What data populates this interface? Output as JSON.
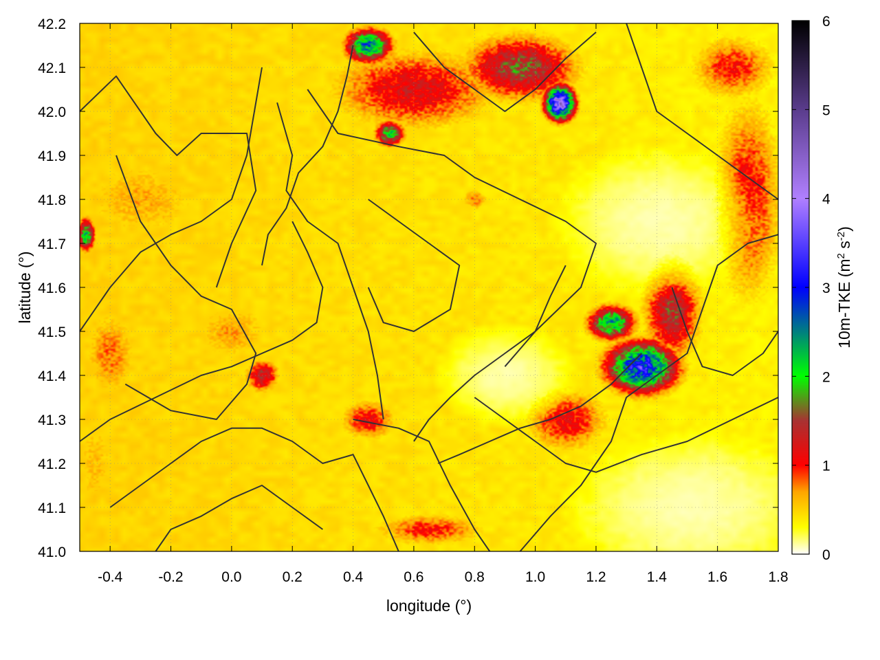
{
  "chart_data": {
    "type": "heatmap",
    "title": "",
    "xlabel": "longitude (°)",
    "ylabel": "latitude (°)",
    "colorbar_label_parts": [
      "10m-TKE (m",
      "2",
      " s",
      "-2",
      ")"
    ],
    "xlim": [
      -0.5,
      1.8
    ],
    "ylim": [
      41.0,
      42.2
    ],
    "x_ticks": [
      -0.4,
      -0.2,
      0.0,
      0.2,
      0.4,
      0.6,
      0.8,
      1.0,
      1.2,
      1.4,
      1.6,
      1.8
    ],
    "x_tick_labels": [
      "-0.4",
      "-0.2",
      "0.0",
      "0.2",
      "0.4",
      "0.6",
      "0.8",
      "1.0",
      "1.2",
      "1.4",
      "1.6",
      "1.8"
    ],
    "y_ticks": [
      41.0,
      41.1,
      41.2,
      41.3,
      41.4,
      41.5,
      41.6,
      41.7,
      41.8,
      41.9,
      42.0,
      42.1,
      42.2
    ],
    "y_tick_labels": [
      "41.0",
      "41.1",
      "41.2",
      "41.3",
      "41.4",
      "41.5",
      "41.6",
      "41.7",
      "41.8",
      "41.9",
      "42.0",
      "42.1",
      "42.2"
    ],
    "colorbar": {
      "range": [
        0,
        6
      ],
      "ticks": [
        0,
        1,
        2,
        3,
        4,
        5,
        6
      ],
      "tick_labels": [
        "0",
        "1",
        "2",
        "3",
        "4",
        "5",
        "6"
      ],
      "stops": [
        {
          "value": 0.0,
          "color": "#ffffff"
        },
        {
          "value": 0.3,
          "color": "#ffff00"
        },
        {
          "value": 0.7,
          "color": "#ffa500"
        },
        {
          "value": 1.0,
          "color": "#ff0000"
        },
        {
          "value": 1.5,
          "color": "#a83232"
        },
        {
          "value": 2.0,
          "color": "#00ff00"
        },
        {
          "value": 3.0,
          "color": "#0000ff"
        },
        {
          "value": 4.0,
          "color": "#b080ff"
        },
        {
          "value": 5.0,
          "color": "#5a3c8c"
        },
        {
          "value": 6.0,
          "color": "#000000"
        }
      ]
    },
    "grid": true,
    "contour_color": "#333333",
    "hotspots": [
      {
        "lon": -0.4,
        "lat": 41.45,
        "rx": 0.1,
        "ry": 0.12,
        "tke": 0.8
      },
      {
        "lon": -0.3,
        "lat": 41.8,
        "rx": 0.25,
        "ry": 0.12,
        "tke": 0.65
      },
      {
        "lon": 0.0,
        "lat": 41.5,
        "rx": 0.15,
        "ry": 0.08,
        "tke": 0.7
      },
      {
        "lon": -0.45,
        "lat": 41.2,
        "rx": 0.08,
        "ry": 0.15,
        "tke": 0.6
      },
      {
        "lon": 0.1,
        "lat": 41.4,
        "rx": 0.06,
        "ry": 0.04,
        "tke": 1.4
      },
      {
        "lon": 0.45,
        "lat": 41.3,
        "rx": 0.1,
        "ry": 0.05,
        "tke": 1.1
      },
      {
        "lon": 0.6,
        "lat": 42.05,
        "rx": 0.3,
        "ry": 0.1,
        "tke": 1.2
      },
      {
        "lon": 0.95,
        "lat": 42.1,
        "rx": 0.2,
        "ry": 0.08,
        "tke": 1.6
      },
      {
        "lon": 1.08,
        "lat": 42.02,
        "rx": 0.05,
        "ry": 0.04,
        "tke": 4.2
      },
      {
        "lon": 0.45,
        "lat": 42.15,
        "rx": 0.08,
        "ry": 0.04,
        "tke": 2.6
      },
      {
        "lon": 0.52,
        "lat": 41.95,
        "rx": 0.05,
        "ry": 0.03,
        "tke": 2.1
      },
      {
        "lon": 1.35,
        "lat": 41.42,
        "rx": 0.12,
        "ry": 0.06,
        "tke": 3.2
      },
      {
        "lon": 1.25,
        "lat": 41.52,
        "rx": 0.08,
        "ry": 0.04,
        "tke": 2.4
      },
      {
        "lon": 1.45,
        "lat": 41.55,
        "rx": 0.1,
        "ry": 0.12,
        "tke": 1.5
      },
      {
        "lon": 1.7,
        "lat": 41.8,
        "rx": 0.12,
        "ry": 0.25,
        "tke": 1.1
      },
      {
        "lon": 1.65,
        "lat": 42.1,
        "rx": 0.15,
        "ry": 0.08,
        "tke": 1.0
      },
      {
        "lon": -0.48,
        "lat": 41.72,
        "rx": 0.03,
        "ry": 0.04,
        "tke": 2.2
      },
      {
        "lon": 0.8,
        "lat": 41.8,
        "rx": 0.05,
        "ry": 0.03,
        "tke": 0.8
      },
      {
        "lon": 0.65,
        "lat": 41.05,
        "rx": 0.2,
        "ry": 0.04,
        "tke": 1.0
      },
      {
        "lon": 1.1,
        "lat": 41.3,
        "rx": 0.15,
        "ry": 0.08,
        "tke": 1.1
      }
    ],
    "calm_zones": [
      {
        "lon": 1.5,
        "lat": 41.1,
        "rx": 0.35,
        "ry": 0.15
      },
      {
        "lon": 1.4,
        "lat": 41.75,
        "rx": 0.3,
        "ry": 0.15
      },
      {
        "lon": 0.9,
        "lat": 41.4,
        "rx": 0.2,
        "ry": 0.1
      }
    ],
    "contours": [
      [
        [
          -0.5,
          42.0
        ],
        [
          -0.38,
          42.08
        ],
        [
          -0.25,
          41.95
        ],
        [
          -0.18,
          41.9
        ],
        [
          -0.1,
          41.95
        ],
        [
          0.05,
          41.95
        ],
        [
          0.08,
          41.82
        ],
        [
          0.0,
          41.7
        ],
        [
          -0.05,
          41.6
        ]
      ],
      [
        [
          -0.38,
          41.9
        ],
        [
          -0.3,
          41.75
        ],
        [
          -0.2,
          41.65
        ],
        [
          -0.1,
          41.58
        ],
        [
          0.0,
          41.55
        ],
        [
          0.08,
          41.45
        ],
        [
          0.05,
          41.38
        ],
        [
          -0.05,
          41.3
        ],
        [
          -0.2,
          41.32
        ],
        [
          -0.35,
          41.38
        ]
      ],
      [
        [
          0.15,
          42.02
        ],
        [
          0.2,
          41.9
        ],
        [
          0.18,
          41.82
        ],
        [
          0.25,
          41.75
        ],
        [
          0.35,
          41.7
        ],
        [
          0.4,
          41.6
        ],
        [
          0.45,
          41.5
        ],
        [
          0.48,
          41.4
        ],
        [
          0.5,
          41.3
        ]
      ],
      [
        [
          0.25,
          42.05
        ],
        [
          0.35,
          41.95
        ],
        [
          0.55,
          41.92
        ],
        [
          0.7,
          41.9
        ],
        [
          0.8,
          41.85
        ],
        [
          0.95,
          41.8
        ],
        [
          1.1,
          41.75
        ],
        [
          1.2,
          41.7
        ],
        [
          1.15,
          41.6
        ],
        [
          1.0,
          41.5
        ],
        [
          0.9,
          41.42
        ]
      ],
      [
        [
          0.45,
          41.8
        ],
        [
          0.55,
          41.75
        ],
        [
          0.65,
          41.7
        ],
        [
          0.75,
          41.65
        ],
        [
          0.72,
          41.55
        ],
        [
          0.6,
          41.5
        ],
        [
          0.5,
          41.52
        ],
        [
          0.45,
          41.6
        ]
      ],
      [
        [
          0.4,
          41.3
        ],
        [
          0.55,
          41.28
        ],
        [
          0.65,
          41.25
        ],
        [
          0.72,
          41.15
        ],
        [
          0.8,
          41.05
        ],
        [
          0.85,
          41.0
        ]
      ],
      [
        [
          0.8,
          41.35
        ],
        [
          0.9,
          41.3
        ],
        [
          1.0,
          41.25
        ],
        [
          1.1,
          41.2
        ],
        [
          1.2,
          41.18
        ],
        [
          1.35,
          41.22
        ],
        [
          1.5,
          41.25
        ],
        [
          1.65,
          41.3
        ],
        [
          1.8,
          41.35
        ]
      ],
      [
        [
          0.95,
          41.0
        ],
        [
          1.05,
          41.08
        ],
        [
          1.15,
          41.15
        ],
        [
          1.25,
          41.25
        ],
        [
          1.3,
          41.35
        ],
        [
          1.4,
          41.4
        ],
        [
          1.5,
          41.45
        ],
        [
          1.55,
          41.55
        ],
        [
          1.6,
          41.65
        ],
        [
          1.7,
          41.7
        ],
        [
          1.8,
          41.72
        ]
      ],
      [
        [
          0.6,
          42.18
        ],
        [
          0.7,
          42.1
        ],
        [
          0.8,
          42.05
        ],
        [
          0.9,
          42.0
        ],
        [
          1.0,
          42.05
        ],
        [
          1.1,
          42.12
        ],
        [
          1.2,
          42.18
        ]
      ],
      [
        [
          1.3,
          42.2
        ],
        [
          1.35,
          42.1
        ],
        [
          1.4,
          42.0
        ],
        [
          1.5,
          41.95
        ],
        [
          1.6,
          41.9
        ],
        [
          1.7,
          41.85
        ],
        [
          1.8,
          41.8
        ]
      ],
      [
        [
          -0.4,
          41.1
        ],
        [
          -0.3,
          41.15
        ],
        [
          -0.2,
          41.2
        ],
        [
          -0.1,
          41.25
        ],
        [
          0.0,
          41.28
        ],
        [
          0.1,
          41.28
        ],
        [
          0.2,
          41.25
        ],
        [
          0.3,
          41.2
        ],
        [
          0.4,
          41.22
        ],
        [
          0.45,
          41.15
        ],
        [
          0.5,
          41.08
        ],
        [
          0.55,
          41.0
        ]
      ],
      [
        [
          -0.5,
          41.25
        ],
        [
          -0.4,
          41.3
        ],
        [
          -0.25,
          41.35
        ],
        [
          -0.1,
          41.4
        ],
        [
          0.0,
          41.42
        ],
        [
          0.1,
          41.45
        ],
        [
          0.2,
          41.48
        ],
        [
          0.28,
          41.52
        ],
        [
          0.3,
          41.6
        ],
        [
          0.25,
          41.68
        ],
        [
          0.2,
          41.75
        ]
      ],
      [
        [
          -0.5,
          41.5
        ],
        [
          -0.4,
          41.6
        ],
        [
          -0.3,
          41.68
        ],
        [
          -0.2,
          41.72
        ],
        [
          -0.1,
          41.75
        ],
        [
          0.0,
          41.8
        ],
        [
          0.05,
          41.9
        ],
        [
          0.08,
          42.02
        ],
        [
          0.1,
          42.1
        ]
      ],
      [
        [
          0.3,
          41.05
        ],
        [
          0.2,
          41.1
        ],
        [
          0.1,
          41.15
        ],
        [
          0.0,
          41.12
        ],
        [
          -0.1,
          41.08
        ],
        [
          -0.2,
          41.05
        ],
        [
          -0.25,
          41.0
        ]
      ],
      [
        [
          1.45,
          41.6
        ],
        [
          1.5,
          41.5
        ],
        [
          1.55,
          41.42
        ],
        [
          1.65,
          41.4
        ],
        [
          1.75,
          41.45
        ],
        [
          1.8,
          41.5
        ]
      ],
      [
        [
          0.6,
          41.25
        ],
        [
          0.65,
          41.3
        ],
        [
          0.72,
          41.35
        ],
        [
          0.8,
          41.4
        ],
        [
          0.9,
          41.45
        ],
        [
          1.0,
          41.5
        ],
        [
          1.05,
          41.58
        ],
        [
          1.1,
          41.65
        ]
      ],
      [
        [
          0.68,
          41.2
        ],
        [
          0.75,
          41.22
        ],
        [
          0.85,
          41.25
        ],
        [
          0.95,
          41.28
        ],
        [
          1.05,
          41.3
        ],
        [
          1.15,
          41.33
        ],
        [
          1.25,
          41.38
        ],
        [
          1.35,
          41.45
        ]
      ],
      [
        [
          0.1,
          41.65
        ],
        [
          0.12,
          41.72
        ],
        [
          0.18,
          41.78
        ],
        [
          0.22,
          41.86
        ],
        [
          0.3,
          41.92
        ],
        [
          0.35,
          42.0
        ],
        [
          0.38,
          42.08
        ],
        [
          0.4,
          42.15
        ]
      ]
    ]
  }
}
